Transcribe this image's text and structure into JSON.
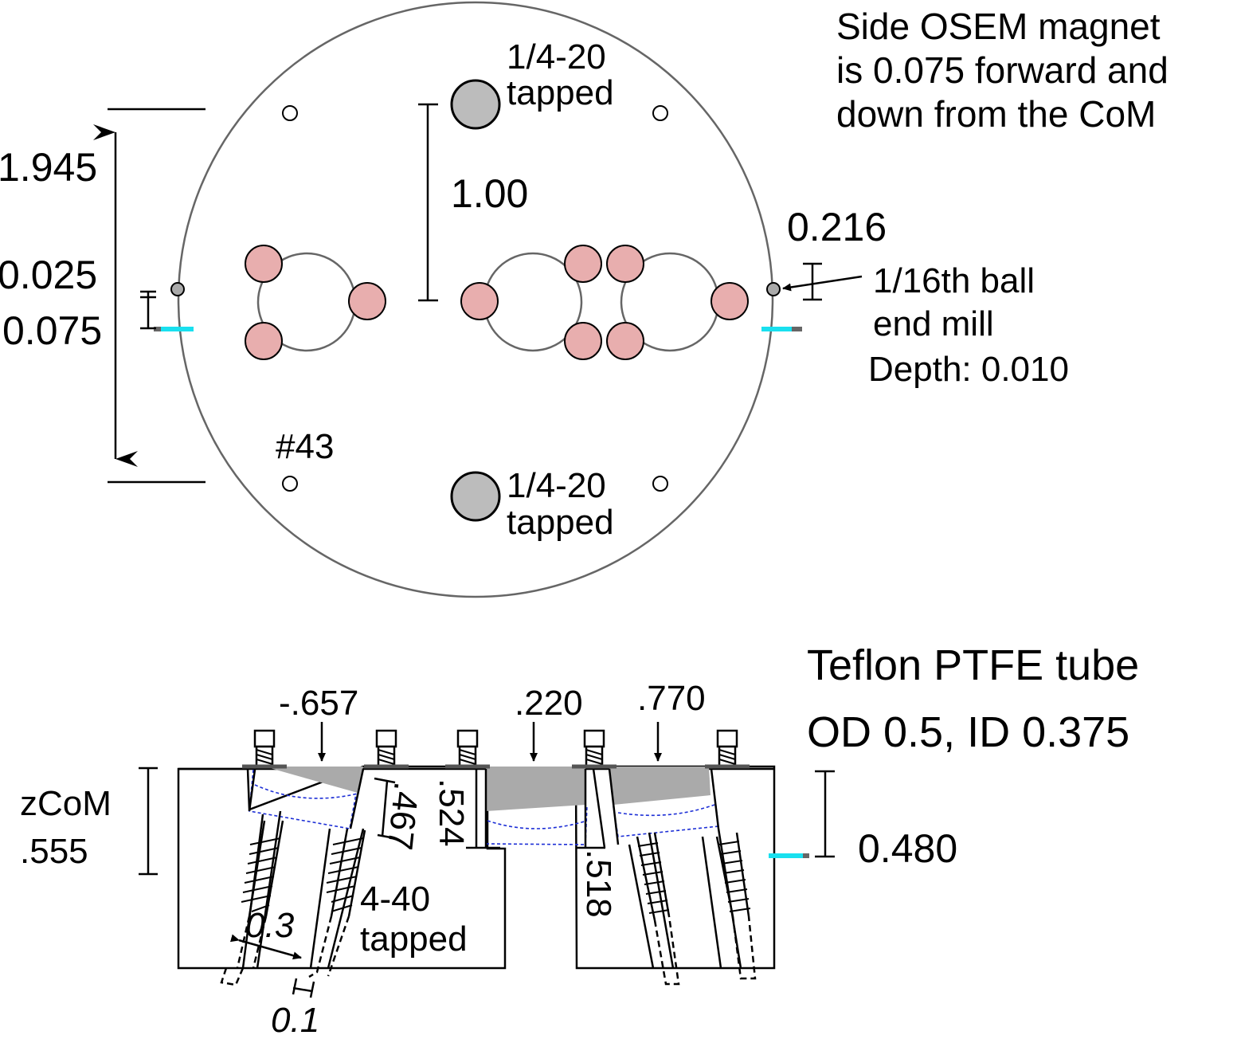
{
  "top_view": {
    "dim_total": "1.945",
    "dim_upper": "0.025",
    "dim_lower": "0.075",
    "dim_spacing": "1.00",
    "dim_ball": "0.216",
    "tap_top_line1": "1/4-20",
    "tap_top_line2": "tapped",
    "tap_bottom_line1": "1/4-20",
    "tap_bottom_line2": "tapped",
    "hole_label": "#43",
    "ball_line1": "1/16th ball",
    "ball_line2": "end mill",
    "ball_line3": "Depth: 0.010",
    "note_line1": "Side OSEM magnet",
    "note_line2": "is 0.075 forward and",
    "note_line3": "down from the CoM"
  },
  "side_view": {
    "title_line1": "Teflon PTFE tube",
    "title_line2": "OD 0.5, ID 0.375",
    "pos_left": "-.657",
    "pos_mid": ".220",
    "pos_right": ".770",
    "zcom_label": "zCoM",
    "zcom_value": ".555",
    "dim_height": "0.480",
    "dim_467": ".467",
    "dim_524": ".524",
    "dim_518": ".518",
    "tap_line1": "4-40",
    "tap_line2": "tapped",
    "dim_03": "0.3",
    "dim_01": "0.1"
  },
  "colors": {
    "magnet": "#e8aeae",
    "tapped_hole": "#bcbcbc",
    "osem_marker": "#19e0ef",
    "tube_outline": "#1d2fd6"
  }
}
